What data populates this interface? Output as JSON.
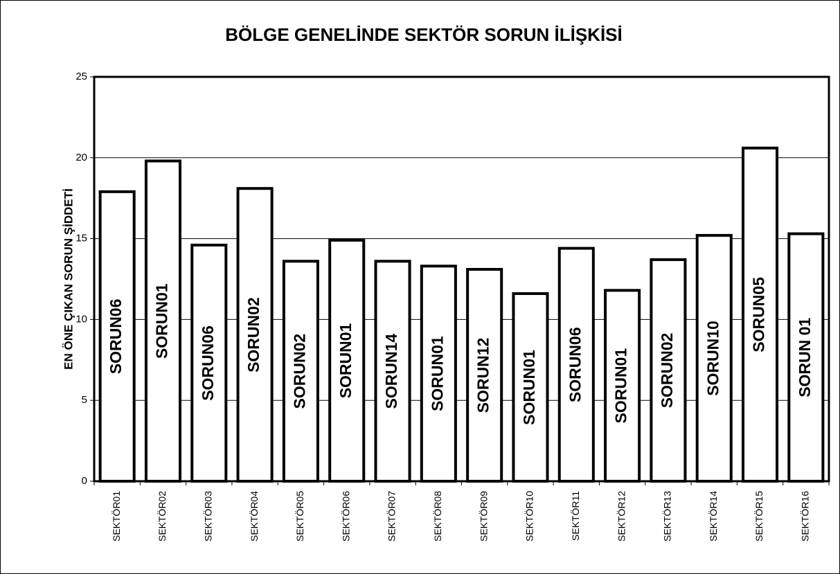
{
  "chart_data": {
    "type": "bar",
    "title": "BÖLGE GENELİNDE SEKTÖR SORUN İLİŞKİSİ",
    "y_label": "EN ÖNE ÇIKAN SORUN ŞİDDETİ",
    "categories": [
      "SEKTÖR01",
      "SEKTÖR02",
      "SEKTÖR03",
      "SEKTÖR04",
      "SEKTÖR05",
      "SEKTÖR06",
      "SEKTÖR07",
      "SEKTÖR08",
      "SEKTÖR09",
      "SEKTÖR10",
      "SEKTÖR11",
      "SEKTÖR12",
      "SEKTÖR13",
      "SEKTÖR14",
      "SEKTÖR15",
      "SEKTÖR16"
    ],
    "values": [
      17.9,
      19.8,
      14.6,
      18.1,
      13.6,
      14.9,
      13.6,
      13.3,
      13.1,
      11.6,
      14.4,
      11.8,
      13.7,
      15.2,
      20.6,
      15.3
    ],
    "bar_labels": [
      "SORUN06",
      "SORUN01",
      "SORUN06",
      "SORUN02",
      "SORUN02",
      "SORUN01",
      "SORUN14",
      "SORUN01",
      "SORUN12",
      "SORUN01",
      "SORUN06",
      "SORUN01",
      "SORUN02",
      "SORUN10",
      "SORUN05",
      "SORUN 01"
    ],
    "color": "#ffffff",
    "ylim": [
      0,
      25
    ],
    "yticks": [
      0,
      5,
      10,
      15,
      20,
      25
    ],
    "grid": true
  }
}
